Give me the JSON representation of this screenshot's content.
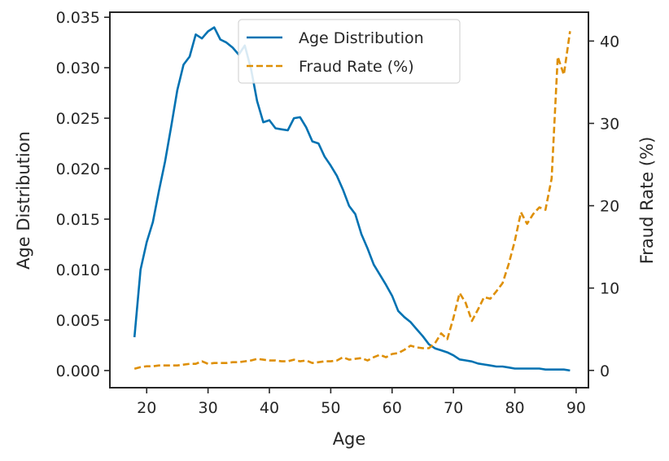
{
  "chart_data": {
    "type": "line",
    "xlabel": "Age",
    "ylabel_left": "Age Distribution",
    "ylabel_right": "Fraud Rate (%)",
    "xlim": [
      14,
      92
    ],
    "ylim_left": [
      -0.0017,
      0.0355
    ],
    "ylim_right": [
      -2.1,
      43.5
    ],
    "x_ticks": [
      20,
      30,
      40,
      50,
      60,
      70,
      80,
      90
    ],
    "y_left_ticks": [
      "0.000",
      "0.005",
      "0.010",
      "0.015",
      "0.020",
      "0.025",
      "0.030",
      "0.035"
    ],
    "y_left_tick_values": [
      0,
      0.005,
      0.01,
      0.015,
      0.02,
      0.025,
      0.03,
      0.035
    ],
    "y_right_ticks": [
      0,
      10,
      20,
      30,
      40
    ],
    "grid": false,
    "legend": "top-center",
    "series": [
      {
        "name": "Age Distribution",
        "axis": "left",
        "color": "#0072b2",
        "style": "solid",
        "x": [
          18,
          19,
          20,
          21,
          22,
          23,
          24,
          25,
          26,
          27,
          28,
          29,
          30,
          31,
          32,
          33,
          34,
          35,
          36,
          37,
          38,
          39,
          40,
          41,
          42,
          43,
          44,
          45,
          46,
          47,
          48,
          49,
          50,
          51,
          52,
          53,
          54,
          55,
          56,
          57,
          58,
          59,
          60,
          61,
          62,
          63,
          64,
          65,
          66,
          67,
          68,
          69,
          70,
          71,
          72,
          73,
          74,
          75,
          76,
          77,
          78,
          79,
          80,
          81,
          82,
          83,
          84,
          85,
          86,
          87,
          88,
          89
        ],
        "values": [
          0.0033,
          0.01,
          0.0127,
          0.0147,
          0.0178,
          0.0207,
          0.0242,
          0.0278,
          0.0303,
          0.0311,
          0.0333,
          0.0329,
          0.0336,
          0.034,
          0.0328,
          0.0325,
          0.032,
          0.0313,
          0.0322,
          0.0299,
          0.0267,
          0.0246,
          0.0248,
          0.024,
          0.0239,
          0.0238,
          0.025,
          0.0251,
          0.0241,
          0.0227,
          0.0225,
          0.0212,
          0.0203,
          0.0193,
          0.0179,
          0.0163,
          0.0155,
          0.0135,
          0.0121,
          0.0105,
          0.0095,
          0.0085,
          0.0074,
          0.0059,
          0.0053,
          0.0048,
          0.0041,
          0.0034,
          0.0026,
          0.0022,
          0.002,
          0.0018,
          0.0015,
          0.0011,
          0.001,
          0.0009,
          0.0007,
          0.0006,
          0.0005,
          0.0004,
          0.0004,
          0.0003,
          0.0002,
          0.0002,
          0.0002,
          0.0002,
          0.0002,
          0.0001,
          0.0001,
          0.0001,
          0.0001,
          0.0
        ]
      },
      {
        "name": "Fraud Rate (%)",
        "axis": "right",
        "color": "#de8f05",
        "style": "dashed",
        "x": [
          18,
          19,
          20,
          21,
          22,
          23,
          24,
          25,
          26,
          27,
          28,
          29,
          30,
          31,
          32,
          33,
          34,
          35,
          36,
          37,
          38,
          39,
          40,
          41,
          42,
          43,
          44,
          45,
          46,
          47,
          48,
          49,
          50,
          51,
          52,
          53,
          54,
          55,
          56,
          57,
          58,
          59,
          60,
          61,
          62,
          63,
          64,
          65,
          66,
          67,
          68,
          69,
          70,
          71,
          72,
          73,
          74,
          75,
          76,
          77,
          78,
          79,
          80,
          81,
          82,
          83,
          84,
          85,
          86,
          87,
          88,
          89
        ],
        "values": [
          0.2,
          0.4,
          0.5,
          0.5,
          0.6,
          0.6,
          0.6,
          0.6,
          0.7,
          0.8,
          0.8,
          1.1,
          0.8,
          0.9,
          0.9,
          0.9,
          1.0,
          1.0,
          1.1,
          1.2,
          1.4,
          1.3,
          1.2,
          1.2,
          1.1,
          1.1,
          1.3,
          1.1,
          1.2,
          0.9,
          1.0,
          1.1,
          1.1,
          1.2,
          1.6,
          1.3,
          1.4,
          1.5,
          1.2,
          1.6,
          1.9,
          1.6,
          2.0,
          2.1,
          2.5,
          3.0,
          2.8,
          2.7,
          2.7,
          3.3,
          4.5,
          3.8,
          6.4,
          9.4,
          8.2,
          6.0,
          7.4,
          8.9,
          8.7,
          9.6,
          10.6,
          12.9,
          15.7,
          19.2,
          17.8,
          19.0,
          19.8,
          19.5,
          23.3,
          38.1,
          35.9,
          41.2
        ]
      }
    ]
  }
}
